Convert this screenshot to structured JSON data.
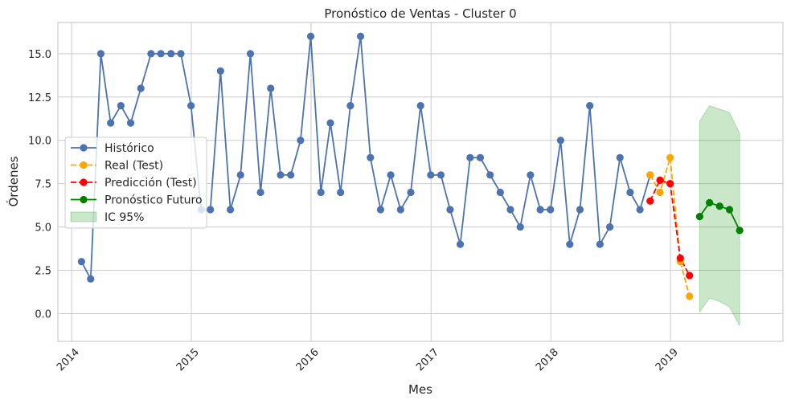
{
  "chart_data": {
    "type": "line",
    "title": "Pronóstico de Ventas - Cluster 0",
    "xlabel": "Mes",
    "ylabel": "Órdenes",
    "x_ticks": [
      "2014",
      "2015",
      "2016",
      "2017",
      "2018",
      "2019"
    ],
    "y_ticks": [
      "0.0",
      "2.5",
      "5.0",
      "7.5",
      "10.0",
      "12.5",
      "15.0"
    ],
    "xlim": [
      "2013-11-20",
      "2019-12-10"
    ],
    "ylim": [
      -1.6,
      16.8
    ],
    "grid": true,
    "legend_position": "center-left",
    "series": [
      {
        "name": "Histórico",
        "color": "#4c72b0",
        "style": "solid",
        "marker": "circle",
        "x": [
          "2014-01-31",
          "2014-02-28",
          "2014-03-31",
          "2014-04-30",
          "2014-05-31",
          "2014-06-30",
          "2014-07-31",
          "2014-08-31",
          "2014-09-30",
          "2014-10-31",
          "2014-11-30",
          "2014-12-31",
          "2015-01-31",
          "2015-02-28",
          "2015-03-31",
          "2015-04-30",
          "2015-05-31",
          "2015-06-30",
          "2015-07-31",
          "2015-08-31",
          "2015-09-30",
          "2015-10-31",
          "2015-11-30",
          "2015-12-31",
          "2016-01-31",
          "2016-02-29",
          "2016-03-31",
          "2016-04-30",
          "2016-05-31",
          "2016-06-30",
          "2016-07-31",
          "2016-08-31",
          "2016-09-30",
          "2016-10-31",
          "2016-11-30",
          "2016-12-31",
          "2017-01-31",
          "2017-02-28",
          "2017-03-31",
          "2017-04-30",
          "2017-05-31",
          "2017-06-30",
          "2017-07-31",
          "2017-08-31",
          "2017-09-30",
          "2017-10-31",
          "2017-11-30",
          "2017-12-31",
          "2018-01-31",
          "2018-02-28",
          "2018-03-31",
          "2018-04-30",
          "2018-05-31",
          "2018-06-30",
          "2018-07-31",
          "2018-08-31",
          "2018-09-30",
          "2018-10-31"
        ],
        "y": [
          3,
          2,
          15,
          11,
          12,
          11,
          13,
          15,
          15,
          15,
          15,
          12,
          6,
          6,
          14,
          6,
          8,
          15,
          7,
          13,
          8,
          8,
          10,
          16,
          7,
          11,
          7,
          12,
          16,
          9,
          6,
          8,
          6,
          7,
          12,
          8,
          8,
          6,
          4,
          9,
          9,
          8,
          7,
          6,
          5,
          8,
          6,
          6,
          10,
          4,
          6,
          12,
          4,
          5,
          9,
          7,
          6,
          8
        ]
      },
      {
        "name": "Real (Test)",
        "color": "#ffa500",
        "style": "dashed",
        "marker": "circle",
        "x": [
          "2018-10-31",
          "2018-11-30",
          "2018-12-31",
          "2019-01-31",
          "2019-02-28"
        ],
        "y": [
          8,
          7,
          9,
          3,
          1
        ]
      },
      {
        "name": "Predicción (Test)",
        "color": "#ff0000",
        "style": "dashed",
        "marker": "circle",
        "x": [
          "2018-10-31",
          "2018-11-30",
          "2018-12-31",
          "2019-01-31",
          "2019-02-28"
        ],
        "y": [
          6.5,
          7.7,
          7.5,
          3.2,
          2.2
        ]
      },
      {
        "name": "Pronóstico Futuro",
        "color": "#008000",
        "style": "solid",
        "marker": "circle",
        "x": [
          "2019-03-31",
          "2019-04-30",
          "2019-05-31",
          "2019-06-30",
          "2019-07-31"
        ],
        "y": [
          5.6,
          6.4,
          6.2,
          6.0,
          4.8
        ]
      }
    ],
    "interval": {
      "name": "IC 95%",
      "color": "#2ca02c",
      "x": [
        "2019-03-31",
        "2019-04-30",
        "2019-05-31",
        "2019-06-30",
        "2019-07-31"
      ],
      "lower": [
        0.1,
        0.9,
        0.7,
        0.4,
        -0.7
      ],
      "upper": [
        11.1,
        12.0,
        11.8,
        11.6,
        10.4
      ]
    }
  }
}
